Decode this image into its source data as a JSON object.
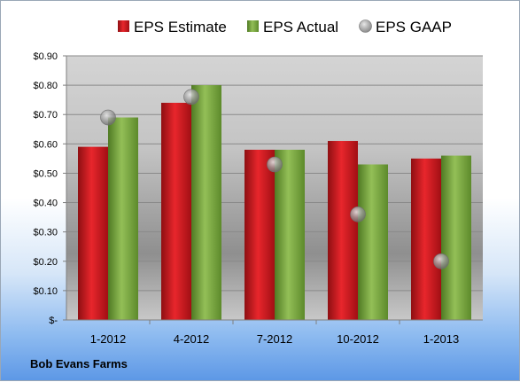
{
  "footer": {
    "company": "Bob Evans Farms"
  },
  "chart_data": {
    "type": "bar",
    "title": "",
    "xlabel": "",
    "ylabel": "",
    "categories": [
      "1-2012",
      "4-2012",
      "7-2012",
      "10-2012",
      "1-2013"
    ],
    "ylim": [
      0,
      0.9
    ],
    "yticks": [
      0,
      0.1,
      0.2,
      0.3,
      0.4,
      0.5,
      0.6,
      0.7,
      0.8,
      0.9
    ],
    "ytick_labels": [
      "$-",
      "$0.10",
      "$0.20",
      "$0.30",
      "$0.40",
      "$0.50",
      "$0.60",
      "$0.70",
      "$0.80",
      "$0.90"
    ],
    "grid": true,
    "legend_position": "top",
    "series": [
      {
        "name": "EPS Estimate",
        "kind": "bar",
        "color": "#c8161d",
        "values": [
          0.59,
          0.74,
          0.58,
          0.61,
          0.55
        ]
      },
      {
        "name": "EPS Actual",
        "kind": "bar",
        "color": "#77a33a",
        "values": [
          0.69,
          0.8,
          0.58,
          0.53,
          0.56
        ]
      },
      {
        "name": "EPS GAAP",
        "kind": "marker",
        "color": "#a8a8a8",
        "values": [
          0.69,
          0.76,
          0.53,
          0.36,
          0.2
        ]
      }
    ]
  }
}
